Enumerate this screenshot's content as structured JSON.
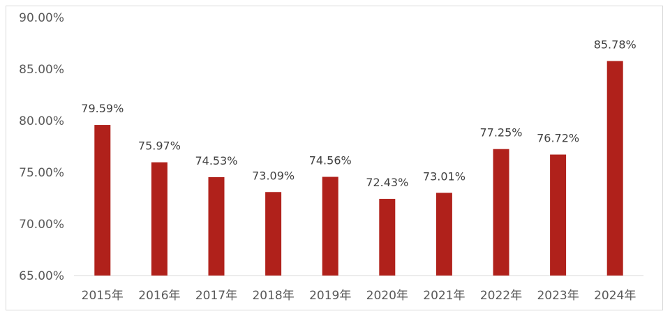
{
  "chart_data": {
    "type": "bar",
    "categories": [
      "2015年",
      "2016年",
      "2017年",
      "2018年",
      "2019年",
      "2020年",
      "2021年",
      "2022年",
      "2023年",
      "2024年"
    ],
    "values": [
      79.59,
      75.97,
      74.53,
      73.09,
      74.56,
      72.43,
      73.01,
      77.25,
      76.72,
      85.78
    ],
    "data_labels": [
      "79.59%",
      "75.97%",
      "74.53%",
      "73.09%",
      "74.56%",
      "72.43%",
      "73.01%",
      "77.25%",
      "76.72%",
      "85.78%"
    ],
    "title": "",
    "xlabel": "",
    "ylabel": "",
    "ylim": [
      65,
      90
    ],
    "y_ticks": [
      65,
      70,
      75,
      80,
      85,
      90
    ],
    "y_tick_labels": [
      "65.00%",
      "70.00%",
      "75.00%",
      "80.00%",
      "85.00%",
      "90.00%"
    ],
    "grid": false,
    "legend": "none",
    "bar_color": "#b0211b",
    "axis_color": "#d9d9d9"
  }
}
